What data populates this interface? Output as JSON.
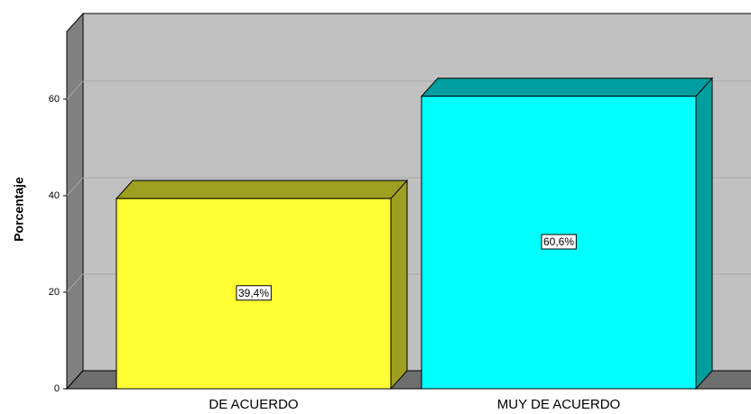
{
  "chart_data": {
    "type": "bar3d",
    "ylabel": "Porcentaje",
    "categories": [
      "DE ACUERDO",
      "MUY DE ACUERDO"
    ],
    "values": [
      39.4,
      60.6
    ],
    "value_labels": [
      "39,4%",
      "60,6%"
    ],
    "colors": [
      "#ffff33",
      "#00ffff"
    ],
    "ylim": [
      0,
      74
    ],
    "yticks": [
      0,
      20,
      40,
      60
    ],
    "grid": true
  }
}
